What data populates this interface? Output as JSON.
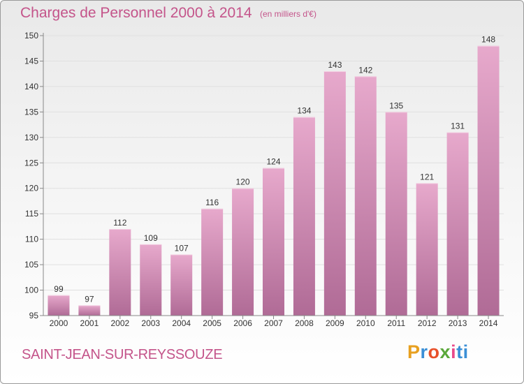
{
  "header": {
    "title": "Charges de Personnel 2000 à 2014",
    "subtitle": "(en milliers d'€)"
  },
  "footer": {
    "commune": "SAINT-JEAN-SUR-REYSSOUZE",
    "logo": {
      "p": "P",
      "r": "r",
      "o": "o",
      "x": "x",
      "i": "i",
      "ti": "ti"
    }
  },
  "colors": {
    "title": "#c4548a",
    "bar_top": "#e7a9cc",
    "bar_bottom": "#b06b96",
    "axis": "#888888",
    "grid": "#e0e0e0"
  },
  "chart_data": {
    "type": "bar",
    "title": "Charges de Personnel 2000 à 2014",
    "subtitle": "(en milliers d'€)",
    "xlabel": "",
    "ylabel": "",
    "categories": [
      "2000",
      "2001",
      "2002",
      "2003",
      "2004",
      "2005",
      "2006",
      "2007",
      "2008",
      "2009",
      "2010",
      "2011",
      "2012",
      "2013",
      "2014"
    ],
    "values": [
      99,
      97,
      112,
      109,
      107,
      116,
      120,
      124,
      134,
      143,
      142,
      135,
      121,
      131,
      148
    ],
    "ylim": [
      95,
      150
    ],
    "yticks": [
      95,
      100,
      105,
      110,
      115,
      120,
      125,
      130,
      135,
      140,
      145,
      150
    ],
    "grid": true,
    "legend": "none"
  }
}
